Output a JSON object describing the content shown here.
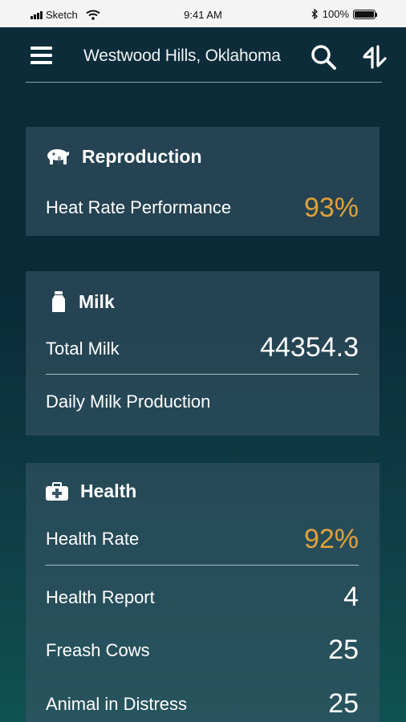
{
  "status_bar": {
    "carrier": "Sketch",
    "time": "9:41 AM",
    "battery": "100%",
    "icons": [
      "signal-icon",
      "wifi-icon",
      "bluetooth-icon",
      "battery-icon"
    ]
  },
  "header": {
    "location": "Westwood Hills, Oklahoma",
    "icons": [
      "menu-icon",
      "search-icon",
      "sort-icon"
    ]
  },
  "colors": {
    "accent": "#e0a23a",
    "card_bg": "#3c5868",
    "background_top": "#0c2c3a",
    "background_bottom": "#0f5152"
  },
  "reproduction": {
    "title": "Reproduction",
    "icon": "cow-icon",
    "heat_rate_label": "Heat Rate Performance",
    "heat_rate_value": "93%"
  },
  "milk": {
    "title": "Milk",
    "icon": "milk-can-icon",
    "total_label": "Total Milk",
    "total_value": "44354.3",
    "daily_label": "Daily Milk Production"
  },
  "health": {
    "title": "Health",
    "icon": "medical-kit-icon",
    "rate_label": "Health Rate",
    "rate_value": "92%",
    "rows": [
      {
        "label": "Health Report",
        "value": "4"
      },
      {
        "label": "Freash Cows",
        "value": "25"
      },
      {
        "label": "Animal in Distress",
        "value": "25"
      }
    ]
  }
}
